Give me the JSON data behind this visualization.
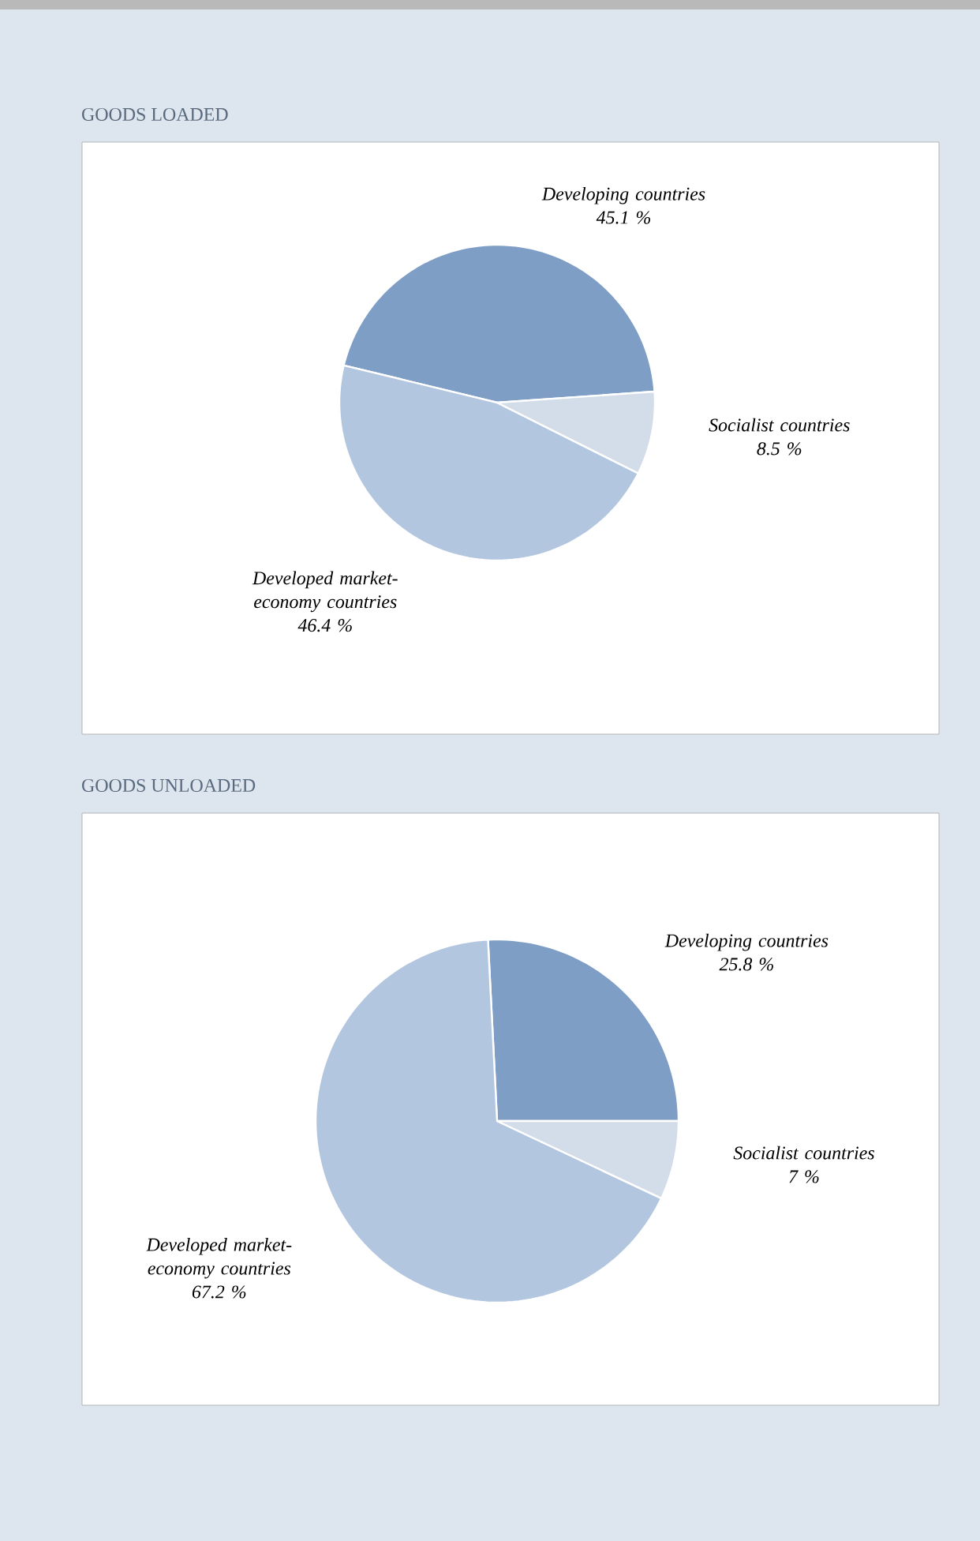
{
  "chart_data": [
    {
      "type": "pie",
      "title": "GOODS LOADED",
      "categories": [
        "Developing countries",
        "Developed market-economy countries",
        "Socialist countries"
      ],
      "values": [
        45.1,
        46.4,
        8.5
      ],
      "colors": [
        "#7f9ec6",
        "#b3c6df",
        "#d3ddea"
      ],
      "value_labels": [
        "45.1 %",
        "46.4 %",
        "8.5 %"
      ]
    },
    {
      "type": "pie",
      "title": "GOODS UNLOADED",
      "categories": [
        "Developing countries",
        "Developed market-economy countries",
        "Socialist countries"
      ],
      "values": [
        25.8,
        67.2,
        7
      ],
      "colors": [
        "#7f9ec6",
        "#b3c6df",
        "#d3ddea"
      ],
      "value_labels": [
        "25.8 %",
        "67.2 %",
        "7 %"
      ]
    }
  ]
}
